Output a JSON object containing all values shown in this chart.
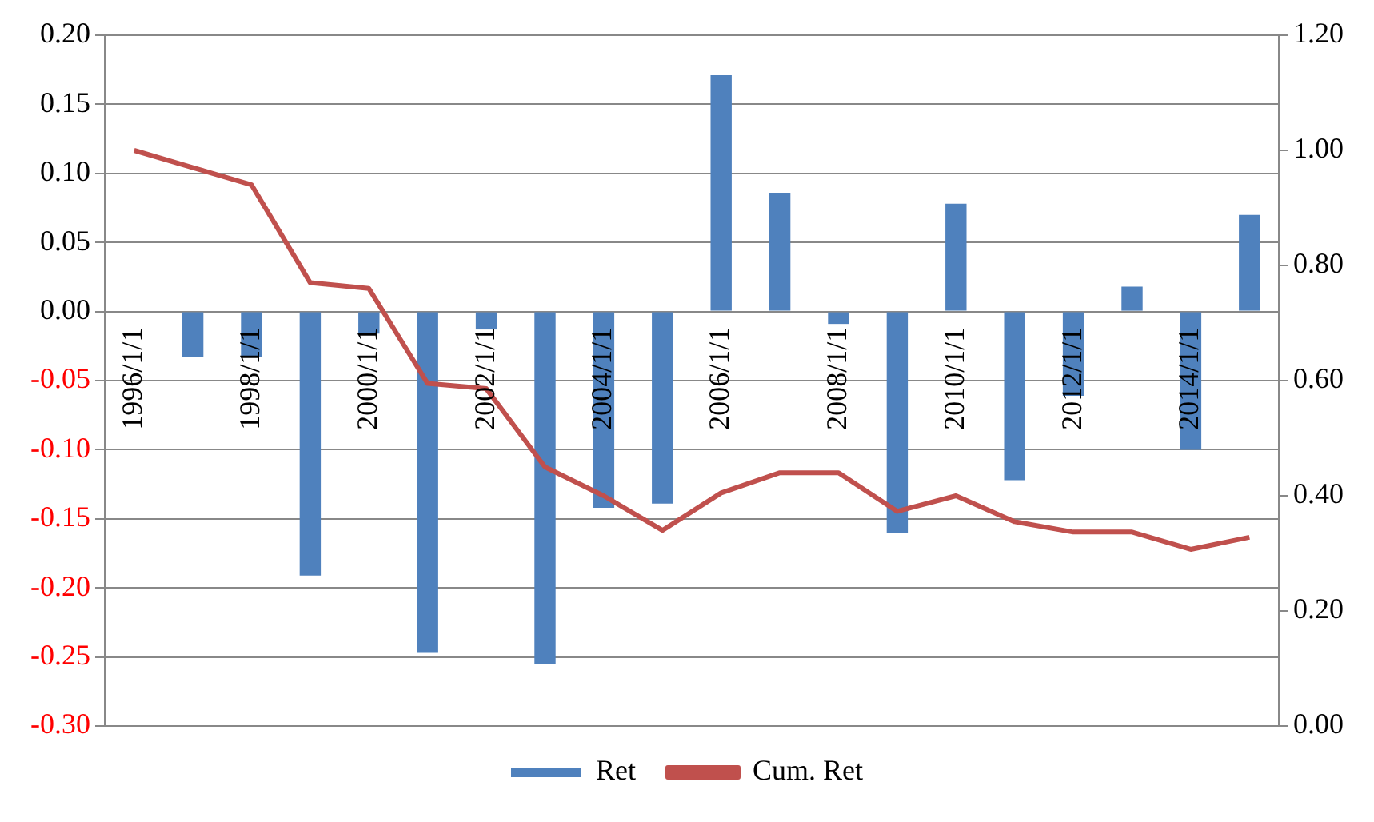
{
  "chart_data": {
    "type": "bar",
    "categories": [
      "1996/1/1",
      null,
      "1998/1/1",
      null,
      "2000/1/1",
      null,
      "2002/1/1",
      null,
      "2004/1/1",
      null,
      "2006/1/1",
      null,
      "2008/1/1",
      null,
      "2010/1/1",
      null,
      "2012/1/1",
      null,
      "2014/1/1",
      null
    ],
    "series": [
      {
        "name": "Ret",
        "color": "#4f81bd",
        "values": [
          0,
          -0.033,
          -0.033,
          -0.191,
          -0.016,
          -0.247,
          -0.013,
          -0.255,
          -0.142,
          -0.139,
          0.171,
          0.086,
          -0.009,
          -0.16,
          0.078,
          -0.122,
          -0.061,
          0.018,
          -0.1,
          0.07
        ]
      },
      {
        "name": "Cum. Ret",
        "type": "line",
        "axis": "y2",
        "color": "#c0504d",
        "values": [
          1.0,
          0.97,
          0.94,
          0.77,
          0.76,
          0.595,
          0.586,
          0.45,
          0.4,
          0.34,
          0.405,
          0.44,
          0.44,
          0.373,
          0.4,
          0.355,
          0.337,
          0.337,
          0.307,
          0.328
        ]
      }
    ],
    "ylim": [
      -0.3,
      0.2
    ],
    "yticks": [
      {
        "value": -0.3,
        "label": "-0.30"
      },
      {
        "value": -0.25,
        "label": "-0.25"
      },
      {
        "value": -0.2,
        "label": "-0.20"
      },
      {
        "value": -0.15,
        "label": "-0.15"
      },
      {
        "value": -0.1,
        "label": "-0.10"
      },
      {
        "value": -0.05,
        "label": "-0.05"
      },
      {
        "value": 0,
        "label": "0.00"
      },
      {
        "value": 0.05,
        "label": "0.05"
      },
      {
        "value": 0.1,
        "label": "0.10"
      },
      {
        "value": 0.15,
        "label": "0.15"
      },
      {
        "value": 0.2,
        "label": "0.20"
      }
    ],
    "y2lim": [
      0,
      1.2
    ],
    "y2ticks": [
      {
        "value": 0,
        "label": "0.00"
      },
      {
        "value": 0.2,
        "label": "0.20"
      },
      {
        "value": 0.4,
        "label": "0.40"
      },
      {
        "value": 0.6,
        "label": "0.60"
      },
      {
        "value": 0.8,
        "label": "0.80"
      },
      {
        "value": 1.0,
        "label": "1.00"
      },
      {
        "value": 1.2,
        "label": "1.20"
      }
    ],
    "grid": "y",
    "legend": "bottom",
    "marker": "none"
  }
}
